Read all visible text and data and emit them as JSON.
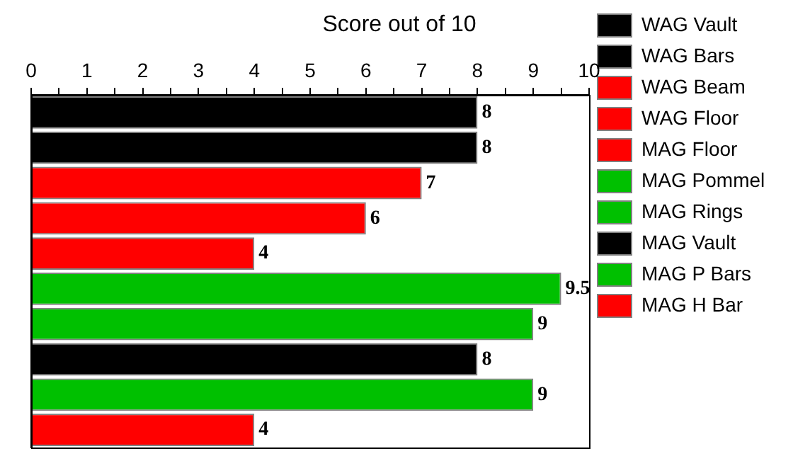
{
  "chart_data": {
    "type": "bar",
    "title": "Score out of 10",
    "orientation": "horizontal",
    "categories": [
      null,
      null,
      null,
      null,
      null,
      null,
      null,
      null,
      null,
      null
    ],
    "series": [
      {
        "name": "WAG Vault",
        "color": "#000000",
        "values": [
          8,
          null,
          null,
          null,
          null,
          null,
          null,
          null,
          null,
          null
        ]
      },
      {
        "name": "WAG Bars",
        "color": "#000000",
        "values": [
          null,
          8,
          null,
          null,
          null,
          null,
          null,
          null,
          null,
          null
        ]
      },
      {
        "name": "WAG Beam",
        "color": "#ff0000",
        "values": [
          null,
          null,
          7,
          null,
          null,
          null,
          null,
          null,
          null,
          null
        ]
      },
      {
        "name": "WAG Floor",
        "color": "#ff0000",
        "values": [
          null,
          null,
          null,
          6,
          null,
          null,
          null,
          null,
          null,
          null
        ]
      },
      {
        "name": "MAG Floor",
        "color": "#ff0000",
        "values": [
          null,
          null,
          null,
          null,
          4,
          null,
          null,
          null,
          null,
          null
        ]
      },
      {
        "name": "MAG Pommel",
        "color": "#00c000",
        "values": [
          null,
          null,
          null,
          null,
          null,
          9.5,
          null,
          null,
          null,
          null
        ]
      },
      {
        "name": "MAG Rings",
        "color": "#00c000",
        "values": [
          null,
          null,
          null,
          null,
          null,
          null,
          9,
          null,
          null,
          null
        ]
      },
      {
        "name": "MAG Vault",
        "color": "#000000",
        "values": [
          null,
          null,
          null,
          null,
          null,
          null,
          null,
          8,
          null,
          null
        ]
      },
      {
        "name": "MAG P Bars",
        "color": "#00c000",
        "values": [
          null,
          null,
          null,
          null,
          null,
          null,
          null,
          null,
          9,
          null
        ]
      },
      {
        "name": "MAG H Bar",
        "color": "#ff0000",
        "values": [
          null,
          null,
          null,
          null,
          null,
          null,
          null,
          null,
          null,
          4
        ]
      }
    ],
    "xlim": [
      0,
      10
    ],
    "xticks": [
      0,
      {
        "value": 0.5,
        "label": null
      },
      1,
      {
        "value": 1.5,
        "label": null
      },
      2,
      {
        "value": 2.5,
        "label": null
      },
      3,
      {
        "value": 3.5,
        "label": null
      },
      4,
      {
        "value": 4.5,
        "label": null
      },
      5,
      {
        "value": 5.5,
        "label": null
      },
      6,
      {
        "value": 6.5,
        "label": null
      },
      7,
      {
        "value": 7.5,
        "label": null
      },
      8,
      {
        "value": 8.5,
        "label": null
      },
      9,
      {
        "value": 9.5,
        "label": null
      },
      10
    ],
    "data_labels": true,
    "grid": false,
    "legend": "right"
  }
}
